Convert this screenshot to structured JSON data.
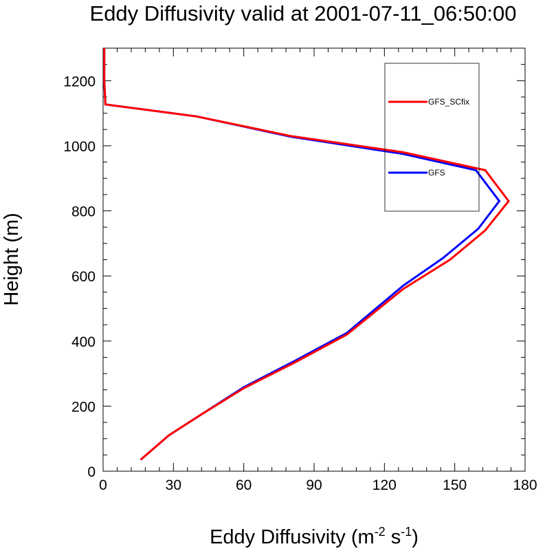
{
  "chart_data": {
    "type": "line",
    "title": "Eddy Diffusivity valid at 2001-07-11_06:50:00",
    "xlabel": "Eddy Diffusivity (m",
    "xlabel_units": {
      "sup1": "-2",
      "mid": " s",
      "sup2": "-1",
      "end": ")"
    },
    "ylabel": "Height (m)",
    "xlim": [
      0,
      180
    ],
    "ylim": [
      0,
      1300
    ],
    "xticks": [
      0,
      30,
      60,
      90,
      120,
      150,
      180
    ],
    "yticks": [
      0,
      200,
      400,
      600,
      800,
      1000,
      1200
    ],
    "grid": false,
    "legend_position": "top-right",
    "series": [
      {
        "name": "GFS_SCfix",
        "color": "#ff0000",
        "x": [
          16,
          28,
          42,
          60,
          82,
          104,
          128,
          148,
          163,
          173,
          163,
          128,
          80,
          40,
          1,
          0.5,
          0.5
        ],
        "y": [
          35,
          110,
          175,
          255,
          335,
          420,
          560,
          650,
          740,
          830,
          925,
          980,
          1030,
          1090,
          1127,
          1200,
          1300
        ]
      },
      {
        "name": "GFS",
        "color": "#0000ff",
        "x": [
          16,
          28,
          42,
          60,
          82,
          104,
          128,
          145,
          160,
          169,
          159,
          128,
          80,
          40,
          1,
          0.5,
          0.5
        ],
        "y": [
          35,
          110,
          175,
          258,
          340,
          425,
          570,
          655,
          745,
          830,
          925,
          975,
          1028,
          1090,
          1127,
          1200,
          1300
        ]
      }
    ]
  }
}
